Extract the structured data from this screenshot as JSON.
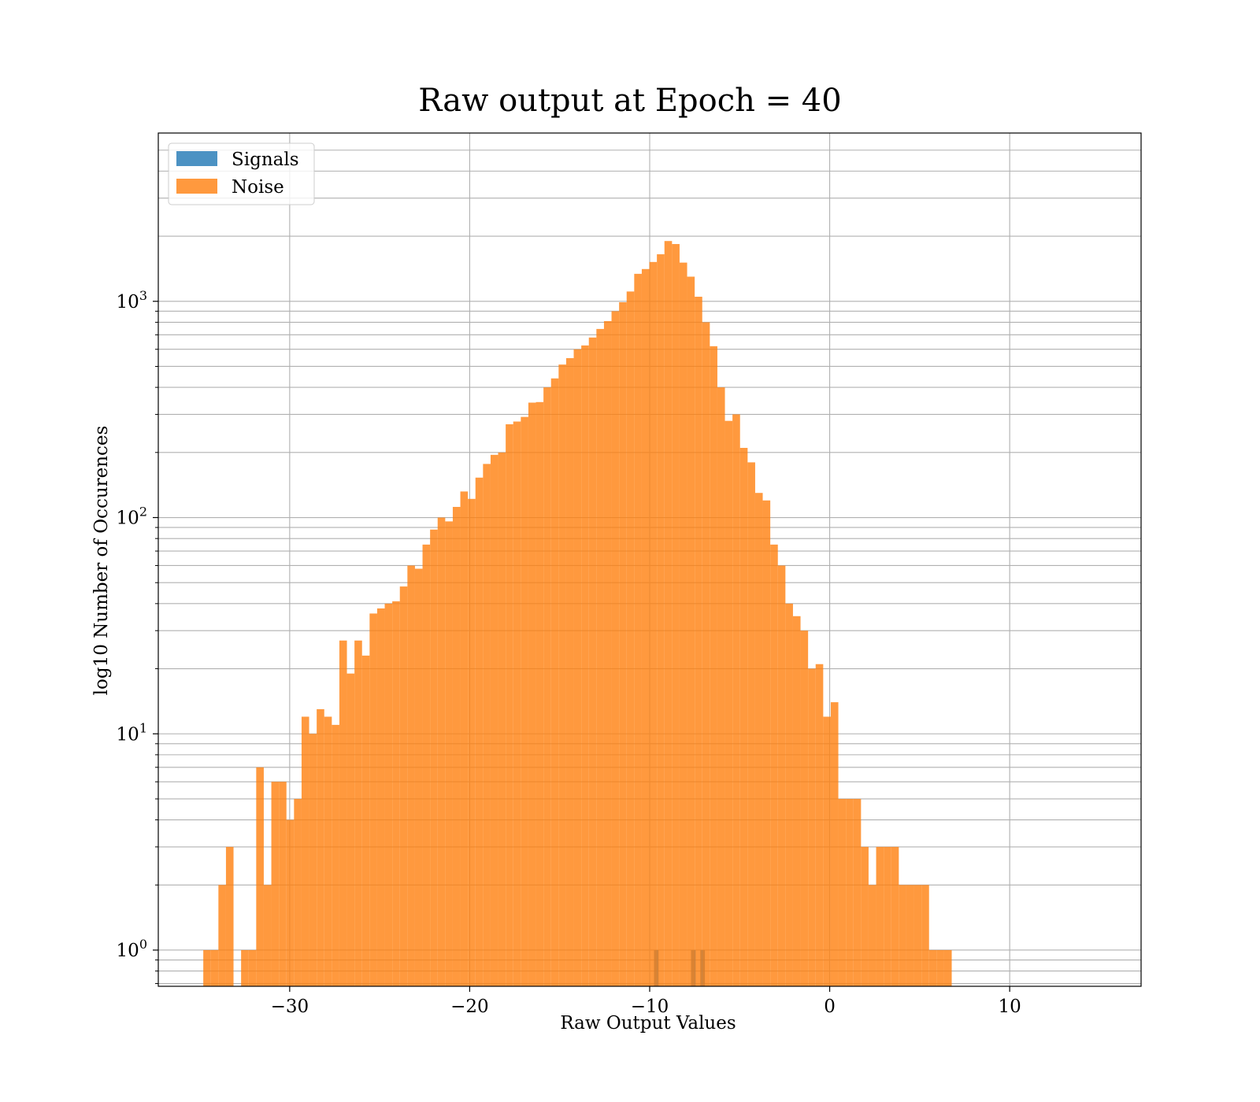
{
  "chart_data": {
    "type": "bar",
    "title": "Raw output at Epoch = 40",
    "xlabel": "Raw Output Values",
    "ylabel": "log10 Number of Occurences",
    "xlim": [
      -37.3,
      17.3
    ],
    "ylim": [
      0.68,
      6000
    ],
    "yscale": "log",
    "grid": true,
    "legend_placement": "top-left",
    "x_ticks": [
      {
        "value": -30,
        "label": "−30"
      },
      {
        "value": -20,
        "label": "−20"
      },
      {
        "value": -10,
        "label": "−10"
      },
      {
        "value": 0,
        "label": "0"
      },
      {
        "value": 10,
        "label": "10"
      }
    ],
    "y_ticks": [
      {
        "value": 1,
        "base": "10",
        "exp": "0"
      },
      {
        "value": 10,
        "base": "10",
        "exp": "1"
      },
      {
        "value": 100,
        "base": "10",
        "exp": "2"
      },
      {
        "value": 1000,
        "base": "10",
        "exp": "3"
      }
    ],
    "series": [
      {
        "name": "Signals",
        "color": "#1f77b4",
        "opacity": 0.8,
        "bin_start": -9.76,
        "bin_width": 0.257,
        "counts": [
          1,
          0,
          0,
          0,
          0,
          0,
          0,
          0,
          1,
          0,
          1,
          0,
          0,
          0,
          0,
          0,
          0,
          0,
          0,
          0,
          0,
          0,
          0,
          0,
          0,
          0,
          0,
          0,
          0,
          0,
          0,
          0,
          0,
          0,
          0,
          0,
          0,
          0,
          0,
          0,
          0,
          0,
          0,
          0,
          0,
          0,
          0,
          0,
          0,
          0,
          0,
          0,
          0,
          0,
          0,
          0,
          0,
          0,
          0,
          0,
          0,
          0,
          0,
          0,
          0,
          0,
          0,
          0,
          0,
          0,
          0,
          0,
          0,
          0,
          0,
          0,
          0,
          0,
          0,
          0,
          0,
          0,
          0,
          0,
          0,
          0,
          0,
          0,
          0,
          0,
          0,
          0,
          0,
          0,
          0,
          0,
          0,
          0,
          0,
          0,
          0,
          0,
          0,
          0,
          0,
          0,
          0,
          0,
          0,
          0,
          0,
          0,
          0,
          0,
          0,
          0,
          0,
          0,
          0,
          0,
          0,
          0,
          0,
          0,
          0,
          0,
          0,
          0,
          0,
          0,
          0,
          0,
          0,
          0,
          0,
          0,
          0,
          0,
          0,
          0,
          0,
          0,
          0,
          0,
          0,
          0,
          0,
          0,
          0,
          0,
          0,
          0,
          0,
          0,
          0,
          0,
          0,
          0,
          0,
          0,
          0,
          0,
          0,
          0,
          0,
          0,
          0,
          0,
          0,
          0,
          0,
          0,
          0,
          0,
          0,
          0,
          0,
          0,
          0,
          0,
          0,
          0,
          0,
          0,
          0,
          0,
          0,
          0,
          0,
          0,
          0,
          0,
          0,
          0,
          0,
          0,
          0,
          0,
          0,
          0
        ]
      },
      {
        "name": "Noise",
        "color": "#ff7f0e",
        "opacity": 0.8,
        "bin_start": -34.8,
        "bin_width": 0.42,
        "counts": [
          1,
          1,
          2,
          3,
          0,
          1,
          1,
          7,
          2,
          6,
          6,
          4,
          5,
          12,
          10,
          13,
          12,
          11,
          27,
          19,
          27,
          23,
          36,
          38,
          40,
          41,
          48,
          60,
          58,
          75,
          88,
          100,
          96,
          112,
          132,
          122,
          153,
          177,
          195,
          200,
          270,
          278,
          292,
          340,
          342,
          400,
          440,
          510,
          546,
          600,
          625,
          680,
          745,
          810,
          900,
          990,
          1110,
          1340,
          1410,
          1520,
          1650,
          1900,
          1840,
          1510,
          1300,
          1050,
          800,
          620,
          400,
          280,
          300,
          210,
          180,
          130,
          120,
          75,
          60,
          40,
          35,
          30,
          20,
          21,
          12,
          14,
          5,
          5,
          5,
          3,
          2,
          3,
          3,
          3,
          2,
          2,
          2,
          2,
          1,
          1,
          1
        ]
      }
    ]
  }
}
